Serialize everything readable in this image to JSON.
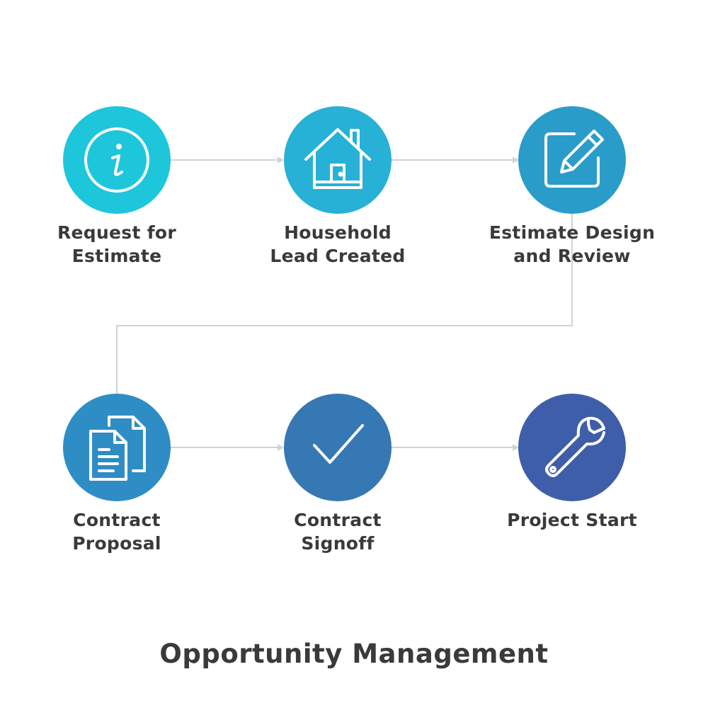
{
  "title": "Opportunity Management",
  "steps": [
    {
      "line1": "Request for",
      "line2": "Estimate",
      "icon": "info-icon",
      "color": "#1ec6dc"
    },
    {
      "line1": "Household",
      "line2": "Lead Created",
      "icon": "house-icon",
      "color": "#27b1d6"
    },
    {
      "line1": "Estimate Design",
      "line2": "and Review",
      "icon": "edit-pencil-icon",
      "color": "#2a9cca"
    },
    {
      "line1": "Contract",
      "line2": "Proposal",
      "icon": "documents-icon",
      "color": "#2f8dc5"
    },
    {
      "line1": "Contract",
      "line2": "Signoff",
      "icon": "checkmark-icon",
      "color": "#3678b4"
    },
    {
      "line1": "Project Start",
      "line2": "",
      "icon": "wrench-icon",
      "color": "#3f5ea9"
    }
  ],
  "connector_color": "#d3d3d3"
}
